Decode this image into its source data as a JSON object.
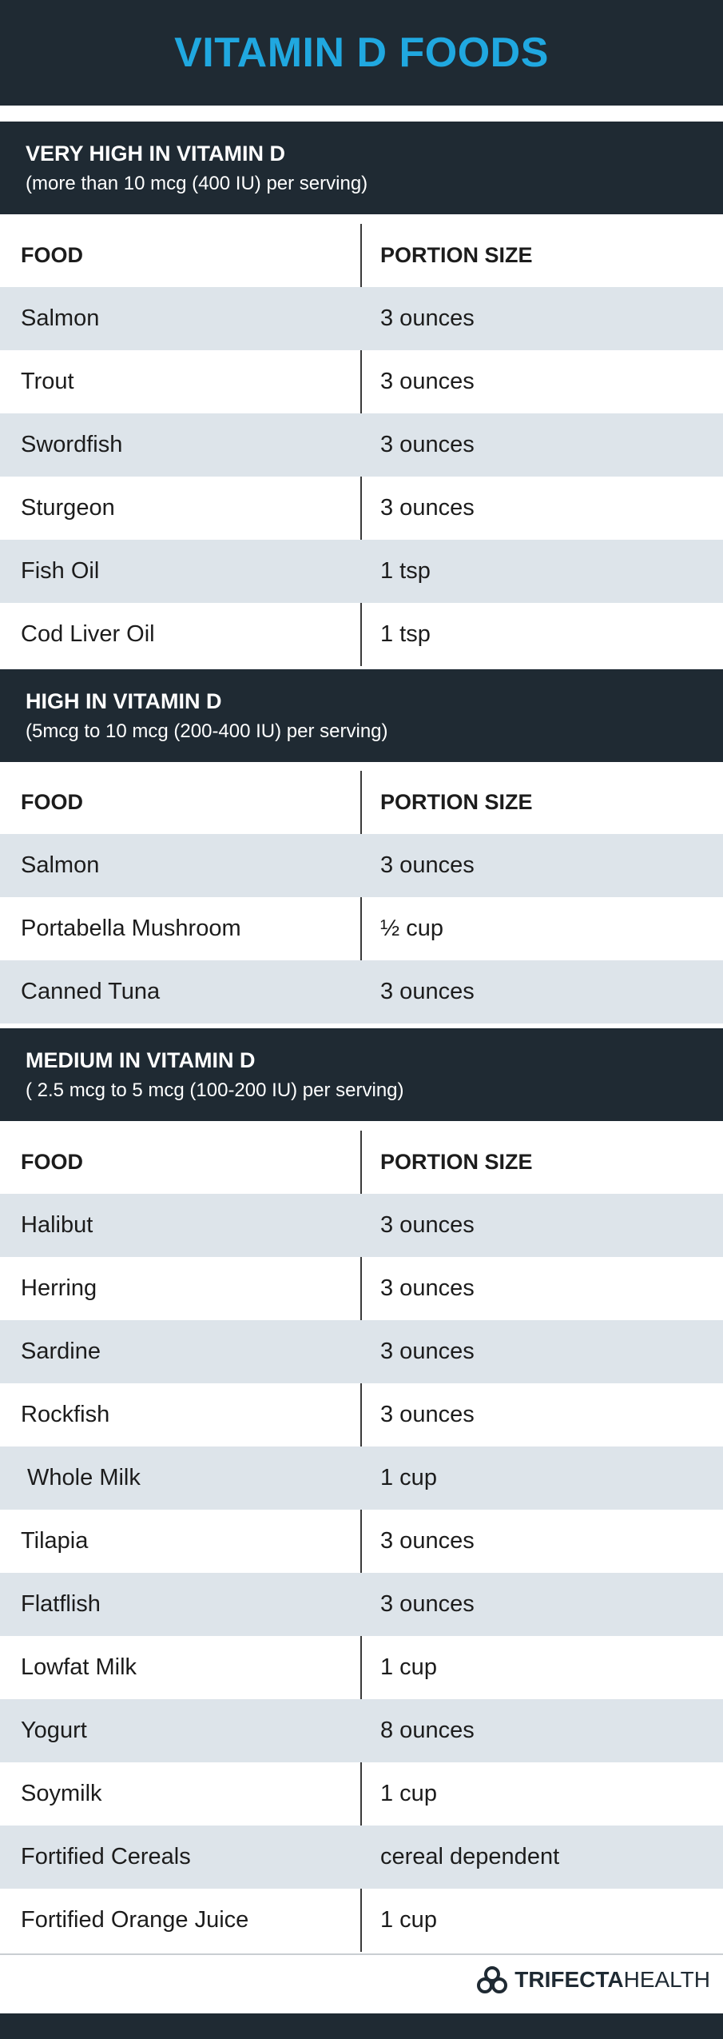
{
  "title": "VITAMIN D FOODS",
  "sections": [
    {
      "title": "VERY HIGH IN VITAMIN D",
      "subtitle": "(more than 10 mcg (400 IU) per serving)",
      "headers": {
        "food": "FOOD",
        "portion": "PORTION SIZE"
      },
      "rows": [
        {
          "food": "Salmon",
          "portion": "3 ounces"
        },
        {
          "food": "Trout",
          "portion": "3 ounces"
        },
        {
          "food": "Swordfish",
          "portion": "3 ounces"
        },
        {
          "food": "Sturgeon",
          "portion": "3 ounces"
        },
        {
          "food": "Fish Oil",
          "portion": "1 tsp"
        },
        {
          "food": "Cod Liver Oil",
          "portion": "1 tsp"
        }
      ]
    },
    {
      "title": "HIGH IN VITAMIN D",
      "subtitle": "(5mcg to 10 mcg (200-400 IU) per serving)",
      "headers": {
        "food": "FOOD",
        "portion": "PORTION SIZE"
      },
      "rows": [
        {
          "food": "Salmon",
          "portion": "3 ounces"
        },
        {
          "food": "Portabella Mushroom",
          "portion": "½ cup"
        },
        {
          "food": "Canned Tuna",
          "portion": "3 ounces"
        }
      ]
    },
    {
      "title": "MEDIUM IN VITAMIN D",
      "subtitle": "( 2.5 mcg  to 5 mcg (100-200 IU) per serving)",
      "headers": {
        "food": "FOOD",
        "portion": "PORTION SIZE"
      },
      "rows": [
        {
          "food": "Halibut",
          "portion": "3 ounces"
        },
        {
          "food": "Herring",
          "portion": "3 ounces"
        },
        {
          "food": "Sardine",
          "portion": "3 ounces"
        },
        {
          "food": "Rockfish",
          "portion": "3 ounces"
        },
        {
          "food": " Whole Milk",
          "portion": "1 cup"
        },
        {
          "food": "Tilapia",
          "portion": "3 ounces"
        },
        {
          "food": "Flatflish",
          "portion": "3 ounces"
        },
        {
          "food": "Lowfat Milk",
          "portion": "1 cup"
        },
        {
          "food": "Yogurt",
          "portion": "8 ounces"
        },
        {
          "food": "Soymilk",
          "portion": "1 cup"
        },
        {
          "food": "Fortified Cereals",
          "portion": "cereal dependent"
        },
        {
          "food": "Fortified Orange Juice",
          "portion": "1 cup"
        }
      ]
    }
  ],
  "brand": {
    "part1": "TRIFECTA",
    "part2": "HEALTH",
    "icon": "trifecta-logo-icon"
  },
  "colors": {
    "dark": "#1f2a33",
    "accent": "#20a8e0",
    "shade": "#dde4ea"
  }
}
